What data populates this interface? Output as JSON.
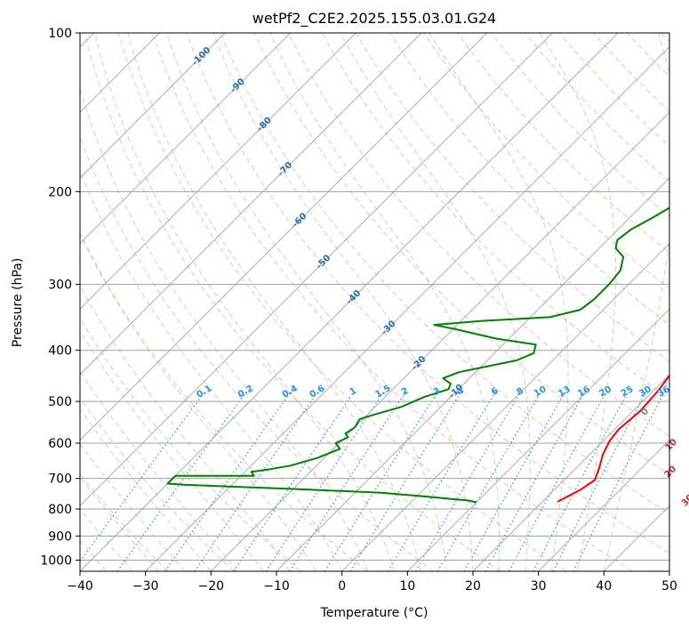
{
  "chart_data": {
    "type": "line",
    "title": "wetPf2_C2E2.2025.155.03.01.G24",
    "xlabel": "Temperature (°C)",
    "ylabel": "Pressure (hPa)",
    "xlim": [
      -40,
      50
    ],
    "ylim": [
      1050,
      100
    ],
    "y_scale": "log",
    "grid": true,
    "x_ticks": [
      "−40",
      "−30",
      "−20",
      "−10",
      "0",
      "10",
      "20",
      "30",
      "40",
      "50"
    ],
    "y_ticks": [
      "100",
      "200",
      "300",
      "400",
      "500",
      "600",
      "700",
      "800",
      "900",
      "1000"
    ],
    "series": [
      {
        "color": "#ff0000",
        "points": [
          [
            22.3,
            775
          ],
          [
            24.0,
            735
          ],
          [
            24.7,
            705
          ],
          [
            23.5,
            668
          ],
          [
            22.0,
            630
          ],
          [
            21.0,
            595
          ],
          [
            20.6,
            565
          ],
          [
            21.1,
            520
          ],
          [
            20.7,
            475
          ],
          [
            20.0,
            440
          ],
          [
            19.3,
            405
          ],
          [
            18.3,
            380
          ],
          [
            18.6,
            355
          ],
          [
            18.0,
            330
          ],
          [
            16.0,
            305
          ],
          [
            12.2,
            280
          ],
          [
            9.3,
            252
          ],
          [
            6.2,
            222
          ],
          [
            3.9,
            200
          ],
          [
            2.8,
            180
          ],
          [
            1.3,
            160
          ],
          [
            0.0,
            145
          ],
          [
            0.0,
            140
          ]
        ]
      },
      {
        "color": "#008000",
        "points": [
          [
            10.0,
            777
          ],
          [
            8.5,
            771
          ],
          [
            1.0,
            757
          ],
          [
            -6.0,
            745
          ],
          [
            -20.0,
            733
          ],
          [
            -37.0,
            720
          ],
          [
            -40.0,
            716
          ],
          [
            -40.0,
            692
          ],
          [
            -28.0,
            692
          ],
          [
            -29.0,
            680
          ],
          [
            -26.5,
            672
          ],
          [
            -24.0,
            662
          ],
          [
            -21.0,
            640
          ],
          [
            -19.0,
            615
          ],
          [
            -20.5,
            600
          ],
          [
            -19.5,
            585
          ],
          [
            -20.5,
            575
          ],
          [
            -20.0,
            560
          ],
          [
            -20.5,
            540
          ],
          [
            -19.0,
            530
          ],
          [
            -16.0,
            512
          ],
          [
            -14.0,
            490
          ],
          [
            -11.5,
            474
          ],
          [
            -12.0,
            463
          ],
          [
            -14.0,
            452
          ],
          [
            -12.5,
            440
          ],
          [
            -10.0,
            432
          ],
          [
            -5.5,
            418
          ],
          [
            -4.0,
            405
          ],
          [
            -5.0,
            390
          ],
          [
            -12.0,
            380
          ],
          [
            -20.0,
            364
          ],
          [
            -23.5,
            358
          ],
          [
            -17.0,
            352
          ],
          [
            -7.0,
            346
          ],
          [
            -3.5,
            335
          ],
          [
            -3.0,
            320
          ],
          [
            -3.0,
            300
          ],
          [
            -3.4,
            282
          ],
          [
            -5.0,
            266
          ],
          [
            -7.5,
            256
          ],
          [
            -8.5,
            247
          ],
          [
            -8.0,
            236
          ],
          [
            -6.5,
            224
          ],
          [
            -4.9,
            210
          ],
          [
            -4.6,
            195
          ],
          [
            -5.0,
            180
          ],
          [
            -4.0,
            168
          ],
          [
            -1.0,
            155
          ],
          [
            0.0,
            145
          ],
          [
            0.5,
            135
          ],
          [
            0.7,
            125
          ],
          [
            0.4,
            115
          ],
          [
            1.0,
            105
          ],
          [
            2.0,
            100
          ]
        ]
      }
    ],
    "isotherm_labels": [
      "-100",
      "-90",
      "-80",
      "-70",
      "-60",
      "-50",
      "-40",
      "-30",
      "-20",
      "-10"
    ],
    "mixing_ratio_labels": [
      "0.1",
      "0.2",
      "0.4",
      "0.6",
      "1",
      "1.5",
      "2",
      "3",
      "4",
      "6",
      "8",
      "10",
      "13",
      "16",
      "20",
      "25",
      "30",
      "36"
    ],
    "dry_adiabat_labels": [
      "0",
      "10",
      "20",
      "30",
      "40"
    ],
    "colors": {
      "temperature": "#ff0000",
      "dewpoint": "#008000",
      "isotherm_label": "#1f6fb4",
      "mixing_ratio": "#1e90ff",
      "dry_adiabat_label": "#d62728",
      "zero_label": "#808080"
    }
  }
}
